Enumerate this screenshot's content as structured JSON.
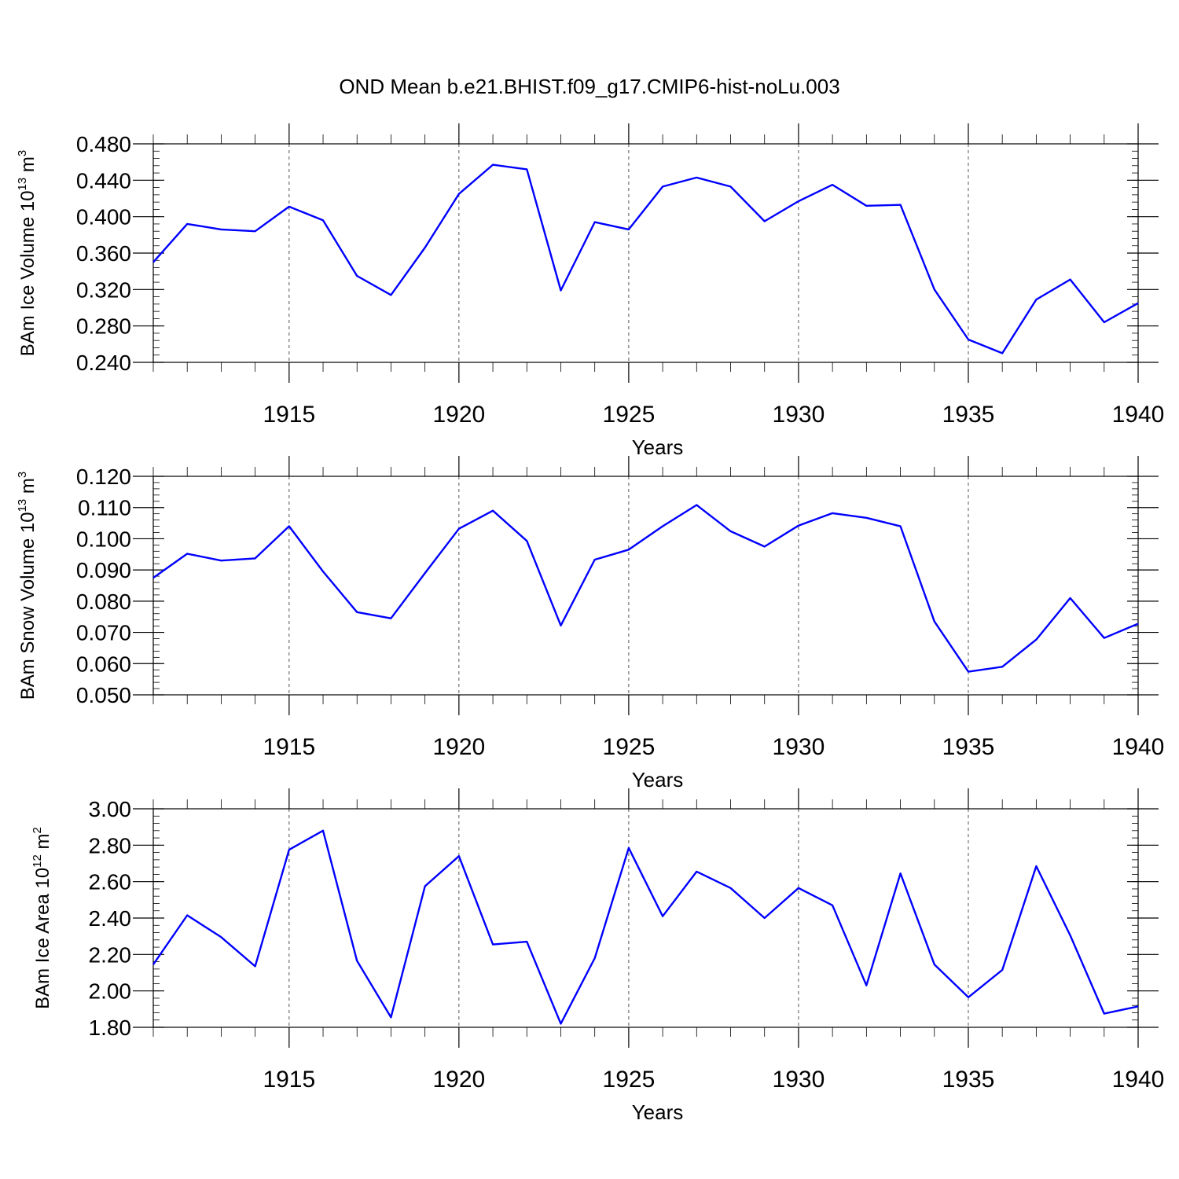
{
  "title": "OND Mean b.e21.BHIST.f09_g17.CMIP6-hist-noLu.003",
  "colors": {
    "series": "#0000ff",
    "axis": "#000000",
    "grid": "#555555"
  },
  "chart_data": [
    {
      "type": "line",
      "ylabel_text": "BAm Ice Volume 10",
      "ylabel_exp": "13",
      "ylabel_unit": " m",
      "ylabel_unit_exp": "3",
      "xlabel": "Years",
      "xlim": [
        1911,
        1940
      ],
      "ylim": [
        0.24,
        0.48
      ],
      "ytick_values": [
        0.24,
        0.28,
        0.32,
        0.36,
        0.4,
        0.44,
        0.48
      ],
      "ytick_labels": [
        "0.240",
        "0.280",
        "0.320",
        "0.360",
        "0.400",
        "0.440",
        "0.480"
      ],
      "yminor_step": 0.008,
      "xtick_values": [
        1915,
        1920,
        1925,
        1930,
        1935,
        1940
      ],
      "xtick_labels": [
        "1915",
        "1920",
        "1925",
        "1930",
        "1935",
        "1940"
      ],
      "grid_x": [
        1915,
        1920,
        1925,
        1930,
        1935
      ],
      "x": [
        1911,
        1912,
        1913,
        1914,
        1915,
        1916,
        1917,
        1918,
        1919,
        1920,
        1921,
        1922,
        1923,
        1924,
        1925,
        1926,
        1927,
        1928,
        1929,
        1930,
        1931,
        1932,
        1933,
        1934,
        1935,
        1936,
        1937,
        1938,
        1939,
        1940
      ],
      "y": [
        0.35,
        0.392,
        0.386,
        0.384,
        0.411,
        0.396,
        0.335,
        0.314,
        0.366,
        0.425,
        0.457,
        0.452,
        0.319,
        0.394,
        0.386,
        0.433,
        0.443,
        0.433,
        0.395,
        0.417,
        0.435,
        0.412,
        0.413,
        0.32,
        0.265,
        0.25,
        0.309,
        0.331,
        0.284,
        0.305
      ]
    },
    {
      "type": "line",
      "ylabel_text": "BAm Snow Volume 10",
      "ylabel_exp": "13",
      "ylabel_unit": " m",
      "ylabel_unit_exp": "3",
      "xlabel": "Years",
      "xlim": [
        1911,
        1940
      ],
      "ylim": [
        0.05,
        0.12
      ],
      "ytick_values": [
        0.05,
        0.06,
        0.07,
        0.08,
        0.09,
        0.1,
        0.11,
        0.12
      ],
      "ytick_labels": [
        "0.050",
        "0.060",
        "0.070",
        "0.080",
        "0.090",
        "0.100",
        "0.110",
        "0.120"
      ],
      "yminor_step": 0.002,
      "xtick_values": [
        1915,
        1920,
        1925,
        1930,
        1935,
        1940
      ],
      "xtick_labels": [
        "1915",
        "1920",
        "1925",
        "1930",
        "1935",
        "1940"
      ],
      "grid_x": [
        1915,
        1920,
        1925,
        1930,
        1935
      ],
      "x": [
        1911,
        1912,
        1913,
        1914,
        1915,
        1916,
        1917,
        1918,
        1919,
        1920,
        1921,
        1922,
        1923,
        1924,
        1925,
        1926,
        1927,
        1928,
        1929,
        1930,
        1931,
        1932,
        1933,
        1934,
        1935,
        1936,
        1937,
        1938,
        1939,
        1940
      ],
      "y": [
        0.0875,
        0.0952,
        0.093,
        0.0937,
        0.104,
        0.0895,
        0.0765,
        0.0745,
        0.089,
        0.1032,
        0.109,
        0.0993,
        0.0722,
        0.0933,
        0.0965,
        0.104,
        0.1108,
        0.1024,
        0.0975,
        0.1042,
        0.1082,
        0.1067,
        0.104,
        0.0735,
        0.0574,
        0.059,
        0.0677,
        0.081,
        0.0682,
        0.0728
      ]
    },
    {
      "type": "line",
      "ylabel_text": "BAm Ice Area 10",
      "ylabel_exp": "12",
      "ylabel_unit": " m",
      "ylabel_unit_exp": "2",
      "xlabel": "Years",
      "xlim": [
        1911,
        1940
      ],
      "ylim": [
        1.8,
        3.0
      ],
      "ytick_values": [
        1.8,
        2.0,
        2.2,
        2.4,
        2.6,
        2.8,
        3.0
      ],
      "ytick_labels": [
        "1.80",
        "2.00",
        "2.20",
        "2.40",
        "2.60",
        "2.80",
        "3.00"
      ],
      "yminor_step": 0.04,
      "xtick_values": [
        1915,
        1920,
        1925,
        1930,
        1935,
        1940
      ],
      "xtick_labels": [
        "1915",
        "1920",
        "1925",
        "1930",
        "1935",
        "1940"
      ],
      "grid_x": [
        1915,
        1920,
        1925,
        1930,
        1935
      ],
      "x": [
        1911,
        1912,
        1913,
        1914,
        1915,
        1916,
        1917,
        1918,
        1919,
        1920,
        1921,
        1922,
        1923,
        1924,
        1925,
        1926,
        1927,
        1928,
        1929,
        1930,
        1931,
        1932,
        1933,
        1934,
        1935,
        1936,
        1937,
        1938,
        1939,
        1940
      ],
      "y": [
        2.145,
        2.415,
        2.295,
        2.135,
        2.775,
        2.88,
        2.165,
        1.855,
        2.575,
        2.74,
        2.255,
        2.27,
        1.82,
        2.18,
        2.785,
        2.41,
        2.655,
        2.565,
        2.4,
        2.565,
        2.47,
        2.03,
        2.645,
        2.145,
        1.965,
        2.115,
        2.685,
        2.305,
        1.875,
        1.915
      ]
    }
  ]
}
